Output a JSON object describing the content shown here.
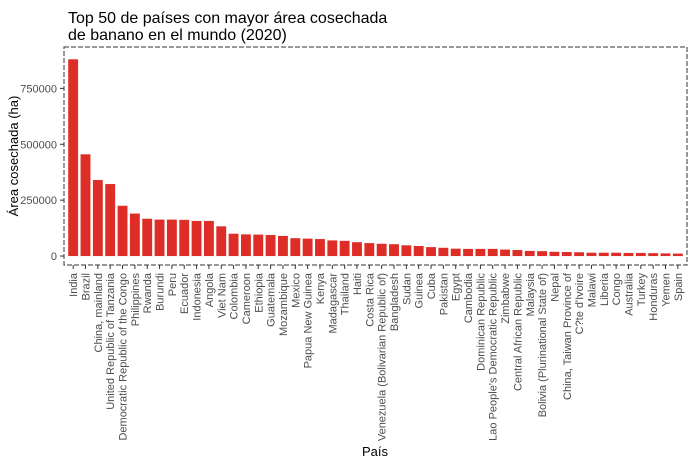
{
  "chart_data": {
    "type": "bar",
    "title": [
      "Top 50 de países con mayor área cosechada",
      "de banano en el mundo (2020)"
    ],
    "xlabel": "País",
    "ylabel": "Área cosechada (ha)",
    "ylim": [
      -40000,
      935000
    ],
    "yticks": [
      0,
      250000,
      500000,
      750000
    ],
    "ytick_labels": [
      "0",
      "250000",
      "500000",
      "750000"
    ],
    "bar_color": "#de2d26",
    "categories": [
      "India",
      "Brazil",
      "China, mainland",
      "United Republic of Tanzania",
      "Democratic Republic of the Congo",
      "Philippines",
      "Rwanda",
      "Burundi",
      "Peru",
      "Ecuador",
      "Indonesia",
      "Angola",
      "Viet Nam",
      "Colombia",
      "Cameroon",
      "Ethiopia",
      "Guatemala",
      "Mozambique",
      "Mexico",
      "Papua New Guinea",
      "Kenya",
      "Madagascar",
      "Thailand",
      "Haiti",
      "Costa Rica",
      "Venezuela (Bolivarian Republic of)",
      "Bangladesh",
      "Sudan",
      "Guinea",
      "Cuba",
      "Pakistan",
      "Egypt",
      "Cambodia",
      "Dominican Republic",
      "Lao People's Democratic Republic",
      "Zimbabwe",
      "Central African Republic",
      "Malaysia",
      "Bolivia (Plurinational State of)",
      "Nepal",
      "China, Taiwan Province of",
      "C?te d'Ivoire",
      "Malawi",
      "Liberia",
      "Congo",
      "Australia",
      "Turkey",
      "Honduras",
      "Yemen",
      "Spain"
    ],
    "values": [
      880000,
      455000,
      340000,
      322000,
      225000,
      190000,
      167000,
      163000,
      163000,
      162000,
      157000,
      157000,
      133000,
      100000,
      97000,
      96000,
      94000,
      90000,
      80000,
      78000,
      76000,
      70000,
      68000,
      62000,
      58000,
      55000,
      53000,
      48000,
      45000,
      40000,
      37000,
      33000,
      32000,
      32000,
      32000,
      29000,
      27000,
      23000,
      22000,
      19000,
      18000,
      17000,
      15000,
      15000,
      15000,
      14000,
      14000,
      13000,
      12000,
      11000
    ]
  }
}
